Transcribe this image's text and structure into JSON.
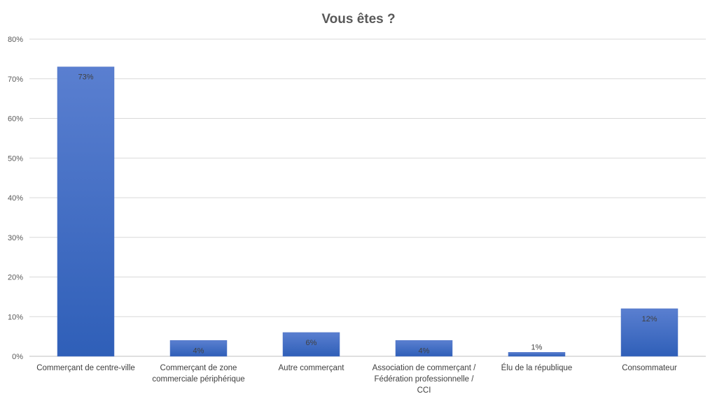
{
  "chart_data": {
    "type": "bar",
    "title": "Vous êtes ?",
    "categories": [
      [
        "Commerçant de centre-ville"
      ],
      [
        "Commerçant de zone",
        "commerciale périphérique"
      ],
      [
        "Autre commerçant"
      ],
      [
        "Association de commerçant /",
        "Fédération professionnelle /",
        "CCI"
      ],
      [
        "Élu de la république"
      ],
      [
        "Consommateur"
      ]
    ],
    "values": [
      73,
      4,
      6,
      4,
      1,
      12
    ],
    "data_labels": [
      "73%",
      "4%",
      "6%",
      "4%",
      "1%",
      "12%"
    ],
    "yticks": [
      "0%",
      "10%",
      "20%",
      "30%",
      "40%",
      "50%",
      "60%",
      "70%",
      "80%"
    ],
    "ylim": [
      0,
      80
    ],
    "grid": true,
    "colors": {
      "bar_top": "#5a7fd0",
      "bar_bottom": "#2f5fb8",
      "text": "#595959"
    }
  }
}
